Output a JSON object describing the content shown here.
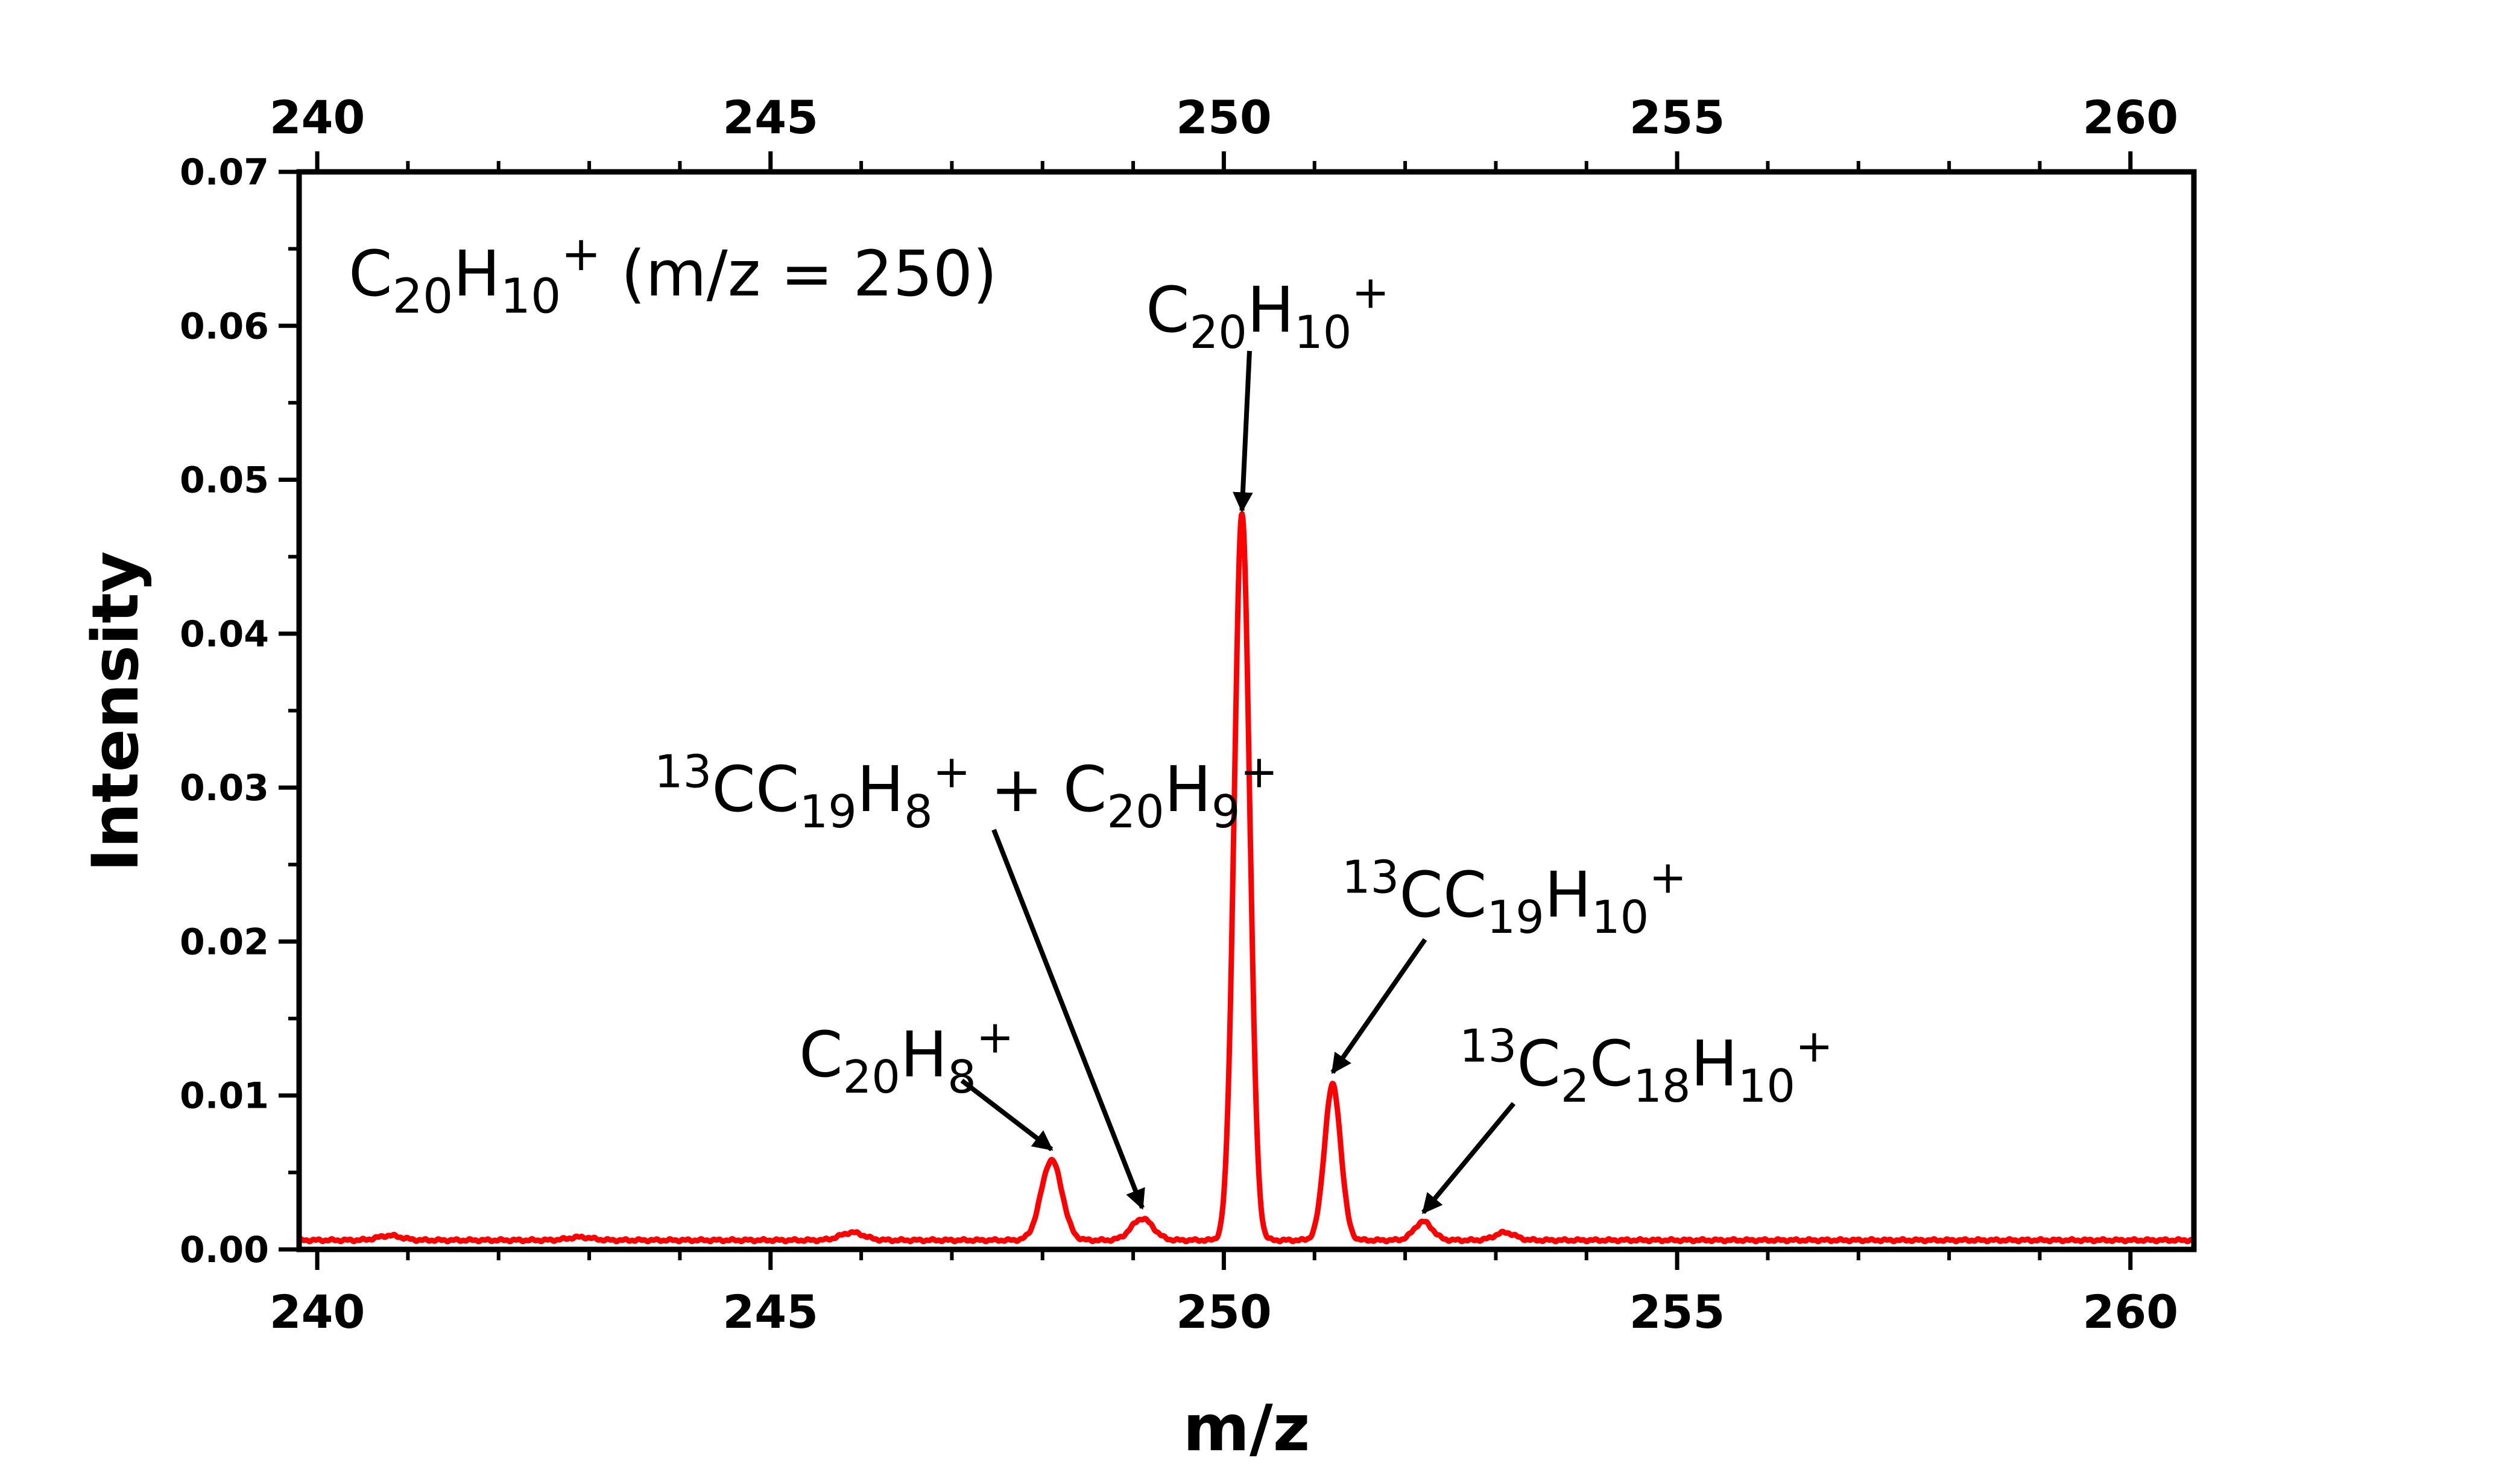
{
  "chart_data": {
    "type": "line",
    "title": "C20H10+ (m/z = 250)",
    "title_parts": [
      {
        "t": "C"
      },
      {
        "t": "20",
        "s": "sub"
      },
      {
        "t": "H"
      },
      {
        "t": "10",
        "s": "sub"
      },
      {
        "t": "+",
        "s": "sup"
      },
      {
        "t": " (m/z = 250)"
      }
    ],
    "xlabel": "m/z",
    "ylabel": "Intensity",
    "xlim": [
      239.8,
      260.7
    ],
    "ylim": [
      0,
      0.07
    ],
    "x_ticks": [
      "240",
      "245",
      "250",
      "255",
      "260"
    ],
    "y_ticks": [
      "0.00",
      "0.01",
      "0.02",
      "0.03",
      "0.04",
      "0.05",
      "0.06",
      "0.07"
    ],
    "top_axis_ticks": true,
    "grid": false,
    "series": [
      {
        "color": "#ff0000",
        "baseline": 0.0006,
        "peaks": [
          {
            "x": 240.8,
            "y": 0.0003,
            "w": 0.13
          },
          {
            "x": 242.9,
            "y": 0.0002,
            "w": 0.13
          },
          {
            "x": 245.9,
            "y": 0.0005,
            "w": 0.13
          },
          {
            "x": 248.1,
            "y": 0.0052,
            "w": 0.115
          },
          {
            "x": 249.1,
            "y": 0.0014,
            "w": 0.12
          },
          {
            "x": 250.2,
            "y": 0.0472,
            "w": 0.085
          },
          {
            "x": 251.2,
            "y": 0.0101,
            "w": 0.09
          },
          {
            "x": 252.2,
            "y": 0.0012,
            "w": 0.1
          },
          {
            "x": 253.1,
            "y": 0.0005,
            "w": 0.11
          }
        ]
      }
    ],
    "annotations": [
      {
        "label": "C20H10+",
        "parts": [
          {
            "t": "C"
          },
          {
            "t": "20",
            "s": "sub"
          },
          {
            "t": "H"
          },
          {
            "t": "10",
            "s": "sub"
          },
          {
            "t": "+",
            "s": "sup"
          }
        ],
        "peak_x": 250.2,
        "peak_y": 0.0475
      },
      {
        "label": "13CC19H8+ + C20H9+",
        "parts": [
          {
            "t": "13",
            "s": "sup"
          },
          {
            "t": "CC"
          },
          {
            "t": "19",
            "s": "sub"
          },
          {
            "t": "H"
          },
          {
            "t": "8",
            "s": "sub"
          },
          {
            "t": "+",
            "s": "sup"
          },
          {
            "t": " + C"
          },
          {
            "t": "20",
            "s": "sub"
          },
          {
            "t": "H"
          },
          {
            "t": "9",
            "s": "sub"
          },
          {
            "t": "+",
            "s": "sup"
          }
        ],
        "peak_x": 249.1,
        "peak_y": 0.002
      },
      {
        "label": "13CC19H10+",
        "parts": [
          {
            "t": "13",
            "s": "sup"
          },
          {
            "t": "CC"
          },
          {
            "t": "19",
            "s": "sub"
          },
          {
            "t": "H"
          },
          {
            "t": "10",
            "s": "sub"
          },
          {
            "t": "+",
            "s": "sup"
          }
        ],
        "peak_x": 251.2,
        "peak_y": 0.0107
      },
      {
        "label": "C20H8+",
        "parts": [
          {
            "t": "C"
          },
          {
            "t": "20",
            "s": "sub"
          },
          {
            "t": "H"
          },
          {
            "t": "8",
            "s": "sub"
          },
          {
            "t": "+",
            "s": "sup"
          }
        ],
        "peak_x": 248.1,
        "peak_y": 0.0058
      },
      {
        "label": "13C2C18H10+",
        "parts": [
          {
            "t": "13",
            "s": "sup"
          },
          {
            "t": "C"
          },
          {
            "t": "2",
            "s": "sub"
          },
          {
            "t": "C"
          },
          {
            "t": "18",
            "s": "sub"
          },
          {
            "t": "H"
          },
          {
            "t": "10",
            "s": "sub"
          },
          {
            "t": "+",
            "s": "sup"
          }
        ],
        "peak_x": 252.2,
        "peak_y": 0.0018
      }
    ]
  }
}
